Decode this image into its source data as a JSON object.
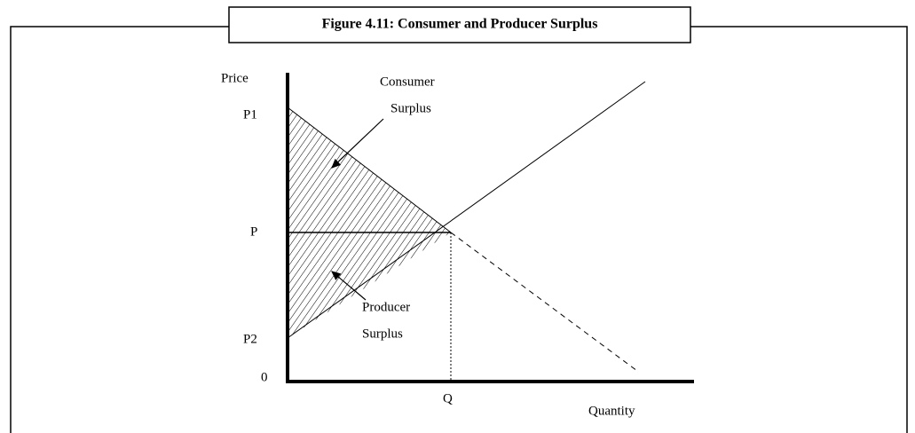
{
  "title": "Figure 4.11: Consumer and Producer Surplus",
  "axes": {
    "y_label": "Price",
    "x_label": "Quantity",
    "origin": "0"
  },
  "price_labels": {
    "p1": "P1",
    "p": "P",
    "p2": "P2"
  },
  "quantity_label": "Q",
  "annotations": {
    "consumer_surplus": [
      "Consumer",
      "Surplus"
    ],
    "producer_surplus": [
      "Producer",
      "Surplus"
    ]
  }
}
